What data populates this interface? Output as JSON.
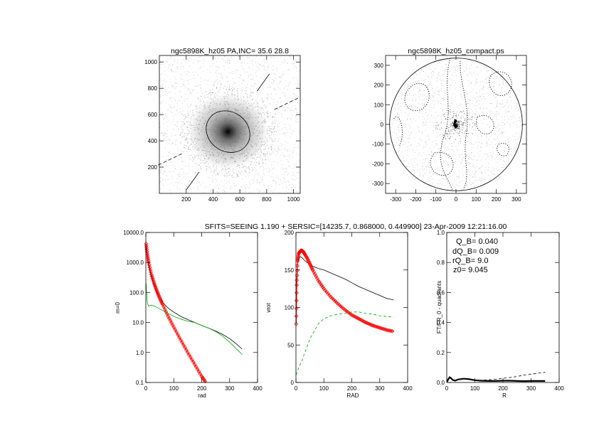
{
  "suptitle": "SFITS=SEEING 1.190 + SERSIC=[14235.7, 0.868000, 0.449900]  23-Apr-2009 12:21:16.00",
  "chart_data": [
    {
      "type": "heatmap",
      "title": "ngc5898K_hz05 PA,INC= 35.6 28.8",
      "xlim": [
        0,
        1050
      ],
      "ylim": [
        0,
        1050
      ],
      "xticks": [
        200,
        400,
        600,
        800,
        1000
      ],
      "yticks": [
        200,
        400,
        600,
        800,
        1000
      ],
      "center": [
        512,
        470
      ],
      "ellipse": {
        "a": 340,
        "b": 300,
        "pa_deg": 35.6
      },
      "colors": {
        "image": "#000000",
        "ellipse": "#000000"
      }
    },
    {
      "type": "heatmap",
      "title": "ngc5898K_hz05_compact.ps",
      "xlim": [
        -350,
        350
      ],
      "ylim": [
        -350,
        350
      ],
      "xticks": [
        -300,
        -200,
        -100,
        0,
        100,
        200,
        300
      ],
      "yticks": [
        -300,
        -200,
        -100,
        0,
        100,
        200,
        300
      ],
      "circle_radius": 330
    },
    {
      "type": "line",
      "xlabel": "rad",
      "ylabel": "m=0",
      "yscale": "log",
      "xlim": [
        0,
        400
      ],
      "ylim": [
        0.1,
        10000
      ],
      "xticks": [
        0,
        100,
        200,
        300,
        400
      ],
      "yticklabels": [
        "0.1",
        "1.0",
        "10.0",
        "100.0",
        "1000.0",
        "10000.0"
      ],
      "yticks": [
        0.1,
        1,
        10,
        100,
        1000,
        10000
      ],
      "series": [
        {
          "style": "solid",
          "color": "#000000",
          "x": [
            1,
            5,
            10,
            20,
            30,
            40,
            50,
            60,
            80,
            100,
            125,
            150,
            175,
            200,
            225,
            250,
            275,
            300,
            325,
            345
          ],
          "y": [
            3000,
            1600,
            800,
            330,
            160,
            95,
            65,
            47,
            30,
            22,
            16,
            12.5,
            10,
            8,
            6.5,
            5.2,
            4.0,
            2.9,
            1.9,
            1.3
          ]
        },
        {
          "style": "red-diamonds",
          "color": "#ff0000",
          "x": [
            1,
            5,
            10,
            20,
            30,
            40,
            50,
            60,
            80,
            100,
            125,
            150,
            175,
            200,
            215
          ],
          "y": [
            4200,
            2000,
            1000,
            400,
            200,
            110,
            65,
            40,
            16,
            7,
            2.6,
            1.0,
            0.4,
            0.16,
            0.1
          ]
        },
        {
          "style": "green",
          "color": "#00aa00",
          "x": [
            1,
            5,
            10,
            20,
            30,
            40,
            50,
            60,
            80,
            100,
            125,
            150,
            175,
            200,
            225,
            250,
            275,
            300,
            325,
            345
          ],
          "y": [
            200,
            45,
            35,
            38,
            35,
            32,
            28,
            25,
            20,
            16,
            13,
            11,
            10,
            8,
            6.5,
            5.0,
            3.5,
            2.2,
            1.3,
            0.85
          ]
        }
      ]
    },
    {
      "type": "line",
      "xlabel": "RAD",
      "ylabel": "vrot",
      "xlim": [
        0,
        400
      ],
      "ylim": [
        0,
        200
      ],
      "xticks": [
        0,
        100,
        200,
        300,
        400
      ],
      "yticks": [
        0,
        50,
        100,
        150,
        200
      ],
      "series": [
        {
          "style": "solid",
          "color": "#000000",
          "x": [
            1,
            3,
            6,
            10,
            15,
            20,
            30,
            40,
            60,
            80,
            100,
            125,
            150,
            175,
            200,
            225,
            250,
            275,
            300,
            325,
            350
          ],
          "y": [
            100,
            140,
            158,
            165,
            168,
            167,
            163,
            160,
            155,
            152,
            150,
            146,
            142,
            138,
            133,
            128,
            124,
            120,
            116,
            112,
            110
          ]
        },
        {
          "style": "red-diamonds",
          "color": "#ff0000",
          "x": [
            1,
            3,
            6,
            10,
            15,
            20,
            25,
            30,
            40,
            50,
            60,
            80,
            100,
            125,
            150,
            175,
            200,
            225,
            250,
            275,
            300,
            325,
            350
          ],
          "y": [
            78,
            130,
            162,
            172,
            175,
            176,
            175,
            172,
            166,
            158,
            150,
            136,
            125,
            114,
            105,
            97,
            90,
            85,
            80,
            76,
            73,
            70,
            68
          ]
        },
        {
          "style": "green-dashed",
          "color": "#00aa00",
          "x": [
            1,
            5,
            10,
            20,
            30,
            40,
            50,
            60,
            80,
            100,
            125,
            150,
            175,
            200,
            225,
            250,
            275,
            300,
            325,
            350
          ],
          "y": [
            10,
            15,
            20,
            28,
            38,
            48,
            58,
            65,
            78,
            85,
            89,
            91,
            92,
            94,
            94,
            92,
            91,
            89,
            88,
            87
          ]
        }
      ]
    },
    {
      "type": "line",
      "xlabel": "R",
      "ylabel": "FT/FR_0 - quadrants",
      "xlim": [
        0,
        400
      ],
      "ylim": [
        0,
        1
      ],
      "xticks": [
        0,
        100,
        200,
        300,
        400
      ],
      "yticks": [
        0,
        0.2,
        0.4,
        0.6,
        0.8,
        1.0
      ],
      "yticklabels": [
        "0.0",
        "0.2",
        "0.4",
        "0.6",
        "0.8",
        "1.0"
      ],
      "annotations": [
        "Q_B=  0.040",
        "dQ_B=  0.009",
        "rQ_B=    9.0",
        "z0=  9.045"
      ],
      "series": [
        {
          "style": "thick",
          "color": "#000000",
          "x": [
            1,
            5,
            10,
            15,
            20,
            30,
            40,
            60,
            80,
            100,
            120,
            150,
            175,
            200,
            225,
            250,
            275,
            300,
            325,
            350
          ],
          "y": [
            0.005,
            0.02,
            0.035,
            0.03,
            0.018,
            0.012,
            0.02,
            0.025,
            0.022,
            0.015,
            0.012,
            0.01,
            0.01,
            0.012,
            0.012,
            0.01,
            0.009,
            0.01,
            0.01,
            0.01
          ]
        },
        {
          "style": "dashed",
          "color": "#000000",
          "x": [
            1,
            5,
            10,
            20,
            30,
            40,
            60,
            80,
            100,
            125,
            150,
            175,
            200,
            225,
            250,
            275,
            300,
            325,
            350
          ],
          "y": [
            0.005,
            0.02,
            0.03,
            0.02,
            0.012,
            0.018,
            0.025,
            0.02,
            0.015,
            0.015,
            0.018,
            0.022,
            0.028,
            0.033,
            0.04,
            0.05,
            0.055,
            0.062,
            0.068
          ]
        }
      ]
    }
  ]
}
